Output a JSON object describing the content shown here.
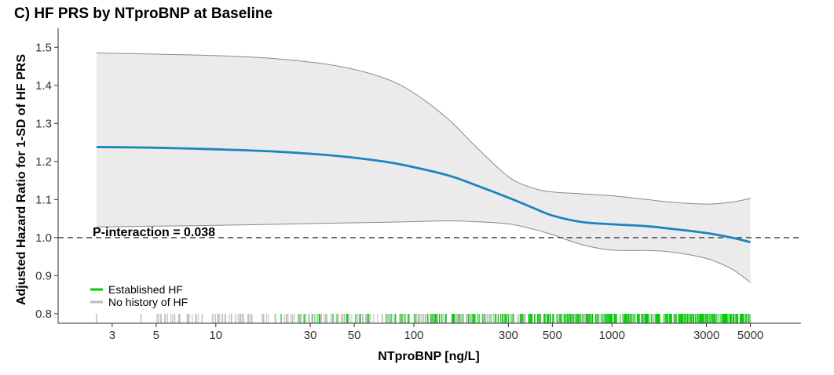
{
  "chart_data": {
    "type": "line",
    "title": "C) HF PRS by NTproBNP at Baseline",
    "xlabel": "NTproBNP [ng/L]",
    "ylabel": "Adjusted Hazard Ratio for 1-SD of HF PRS",
    "x_scale": "log",
    "xlim": [
      1.6,
      9000
    ],
    "ylim": [
      0.775,
      1.55
    ],
    "x_ticks": [
      3,
      5,
      10,
      30,
      50,
      100,
      300,
      500,
      1000,
      3000,
      5000
    ],
    "x_tick_labels": [
      "3",
      "5",
      "10",
      "30",
      "50",
      "100",
      "300",
      "500",
      "1000",
      "3000",
      "5000"
    ],
    "y_ticks": [
      0.8,
      0.9,
      1.0,
      1.1,
      1.2,
      1.3,
      1.4,
      1.5
    ],
    "y_tick_labels": [
      "0.8",
      "0.9",
      "1.0",
      "1.1",
      "1.2",
      "1.3",
      "1.4",
      "1.5"
    ],
    "reference_line": {
      "y": 1.0,
      "style": "dashed",
      "color": "#666666"
    },
    "series": [
      {
        "role": "estimate",
        "color": "#1a85be",
        "x": [
          2.5,
          5,
          10,
          20,
          40,
          70,
          100,
          150,
          200,
          300,
          400,
          500,
          700,
          1000,
          1500,
          2000,
          3000,
          4000,
          5000
        ],
        "y": [
          1.238,
          1.236,
          1.232,
          1.226,
          1.215,
          1.2,
          1.185,
          1.163,
          1.14,
          1.105,
          1.078,
          1.058,
          1.041,
          1.035,
          1.03,
          1.023,
          1.012,
          1.0,
          0.988
        ]
      }
    ],
    "confidence_band": {
      "fill": "#ebebeb",
      "stroke": "#8a8a8a",
      "x": [
        2.5,
        5,
        10,
        20,
        40,
        70,
        100,
        150,
        200,
        300,
        400,
        500,
        700,
        1000,
        1500,
        2000,
        3000,
        4000,
        5000
      ],
      "upper": [
        1.485,
        1.482,
        1.478,
        1.47,
        1.452,
        1.42,
        1.38,
        1.31,
        1.245,
        1.16,
        1.13,
        1.12,
        1.115,
        1.11,
        1.1,
        1.093,
        1.088,
        1.093,
        1.103
      ],
      "lower": [
        1.028,
        1.03,
        1.032,
        1.035,
        1.038,
        1.04,
        1.042,
        1.044,
        1.042,
        1.036,
        1.022,
        1.008,
        0.982,
        0.967,
        0.966,
        0.962,
        0.945,
        0.918,
        0.882
      ]
    },
    "annotations": [
      {
        "text": "P-interaction = 0.038"
      }
    ],
    "legend": {
      "placement": "bottom-left",
      "entries": [
        {
          "label": "Established HF",
          "color": "#00cc00"
        },
        {
          "label": "No history of HF",
          "color": "#bdbdbd"
        }
      ]
    },
    "rug": {
      "groups": [
        {
          "label": "Established HF",
          "color": "#00cc00",
          "x_range": [
            15,
            5000
          ]
        },
        {
          "label": "No history of HF",
          "color": "#bdbdbd",
          "x_range": [
            2.5,
            5000
          ]
        }
      ]
    },
    "grid": false
  }
}
